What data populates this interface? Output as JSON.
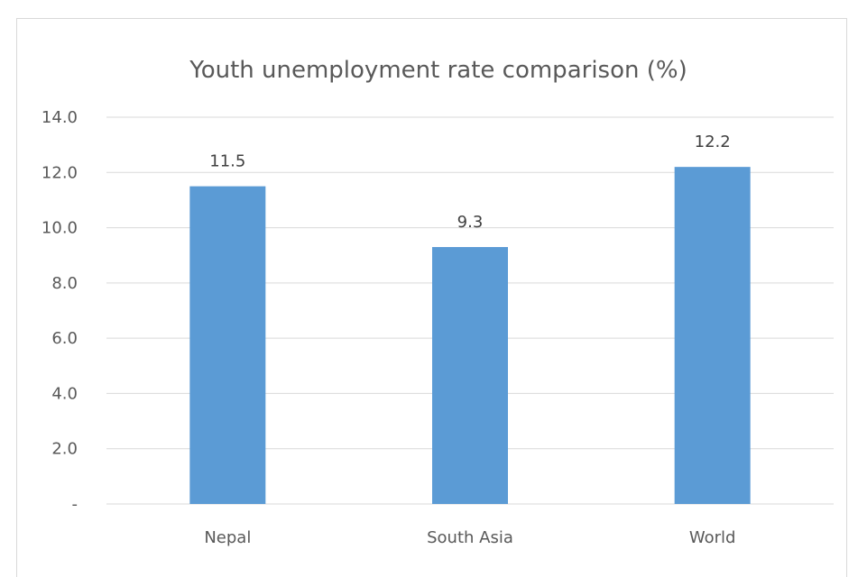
{
  "chart_data": {
    "type": "bar",
    "title": "Youth unemployment rate comparison (%)",
    "xlabel": "",
    "ylabel": "",
    "categories": [
      "Nepal",
      "South Asia",
      "World"
    ],
    "values": [
      11.5,
      9.3,
      12.2
    ],
    "value_labels": [
      "11.5",
      "9.3",
      "12.2"
    ],
    "ylim": [
      0,
      14
    ],
    "yticks": [
      0,
      2,
      4,
      6,
      8,
      10,
      12,
      14
    ],
    "ytick_labels": [
      "-",
      "2.0",
      "4.0",
      "6.0",
      "8.0",
      "10.0",
      "12.0",
      "14.0"
    ],
    "grid": true,
    "legend": "none",
    "bar_color": "#5b9bd5",
    "gridline_color": "#d9d9d9"
  }
}
